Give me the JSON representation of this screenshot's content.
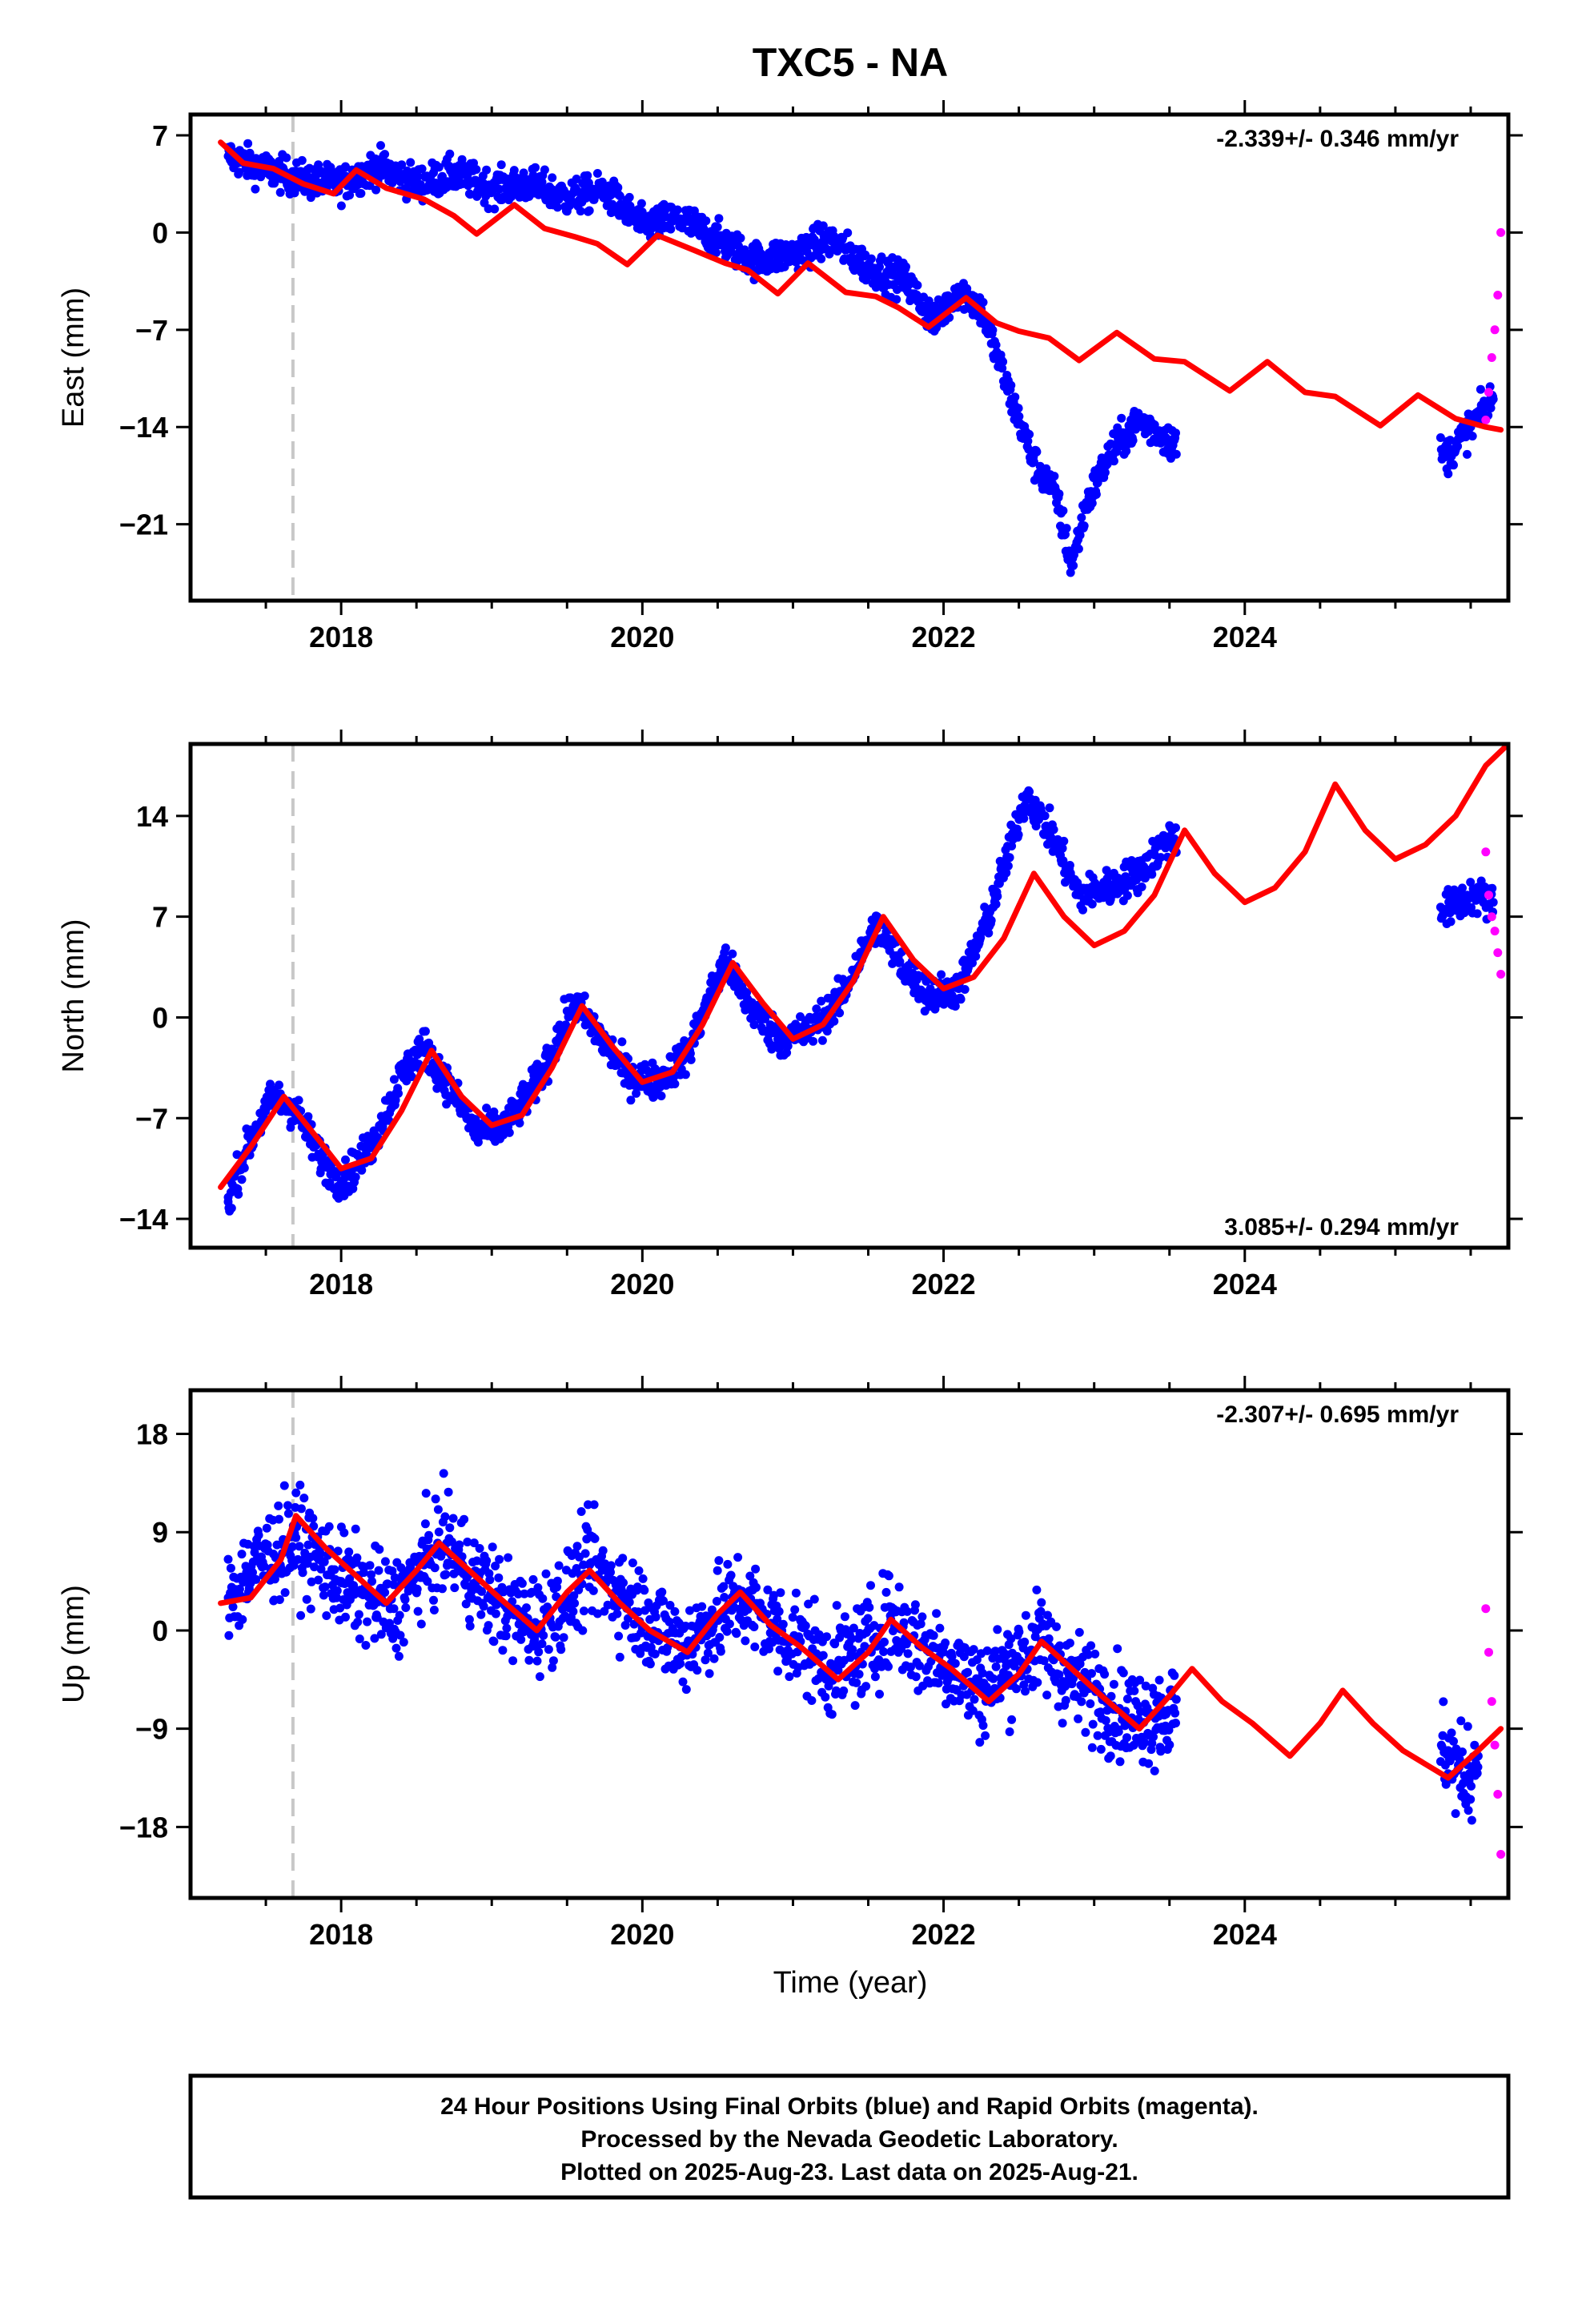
{
  "chart_data": {
    "type": "scatter",
    "title": "TXC5 - NA",
    "xlabel": "Time (year)",
    "xlim": [
      2017.0,
      2025.75
    ],
    "x_ticks": [
      "2018",
      "2020",
      "2022",
      "2024"
    ],
    "grid": false,
    "colors": {
      "final_orbits": "#0000ff",
      "rapid_orbits": "#ff00ff",
      "model_fit": "#ff0000",
      "event_line": "#c8c8c8"
    },
    "event_marker_x": 2017.68,
    "caption": [
      "24 Hour Positions Using Final Orbits (blue) and Rapid Orbits (magenta).",
      "Processed by the Nevada Geodetic Laboratory.",
      "Plotted on 2025-Aug-23. Last data on 2025-Aug-21."
    ],
    "panels": [
      {
        "ylabel": "East (mm)",
        "ylim": [
          -26.5,
          8.5
        ],
        "y_ticks": [
          "7",
          "0",
          "-7",
          "-14",
          "-21"
        ],
        "y_tick_values": [
          7,
          0,
          -7,
          -14,
          -21
        ],
        "rate": "-2.339+/- 0.346 mm/yr",
        "rate_position": "top-right",
        "series": [
          {
            "name": "Final Orbits",
            "x": [
              2017.25,
              2017.5,
              2017.75,
              2018.0,
              2018.25,
              2018.5,
              2018.75,
              2019.0,
              2019.25,
              2019.5,
              2019.75,
              2020.0,
              2020.25,
              2020.5,
              2020.75,
              2021.0,
              2021.25,
              2021.5,
              2021.75,
              2021.95,
              2022.1,
              2022.25,
              2022.45,
              2022.6,
              2022.75,
              2022.85,
              2022.95,
              2023.1,
              2023.3,
              2023.5,
              2025.35,
              2025.5,
              2025.65
            ],
            "y": [
              5.5,
              4.5,
              3.8,
              3.5,
              4.8,
              3.5,
              4.2,
              3.2,
              3.5,
              2.5,
              3.0,
              0.5,
              1.0,
              -0.5,
              -2.0,
              -1.5,
              -0.5,
              -2.5,
              -3.5,
              -6.5,
              -4.0,
              -5.5,
              -12.0,
              -16.5,
              -19.0,
              -24.0,
              -19.5,
              -16.0,
              -13.5,
              -15.0,
              -16.0,
              -14.0,
              -12.0
            ]
          },
          {
            "name": "Rapid Orbits",
            "x": [
              2025.6,
              2025.62,
              2025.64,
              2025.66,
              2025.68,
              2025.7
            ],
            "y": [
              -13.5,
              -11.5,
              -9.0,
              -7.0,
              -4.5,
              0.0
            ]
          },
          {
            "name": "Model",
            "x": [
              2017.2,
              2017.35,
              2017.55,
              2017.75,
              2017.95,
              2018.1,
              2018.3,
              2018.55,
              2018.75,
              2018.9,
              2019.15,
              2019.35,
              2019.55,
              2019.7,
              2019.9,
              2020.1,
              2020.35,
              2020.55,
              2020.7,
              2020.9,
              2021.1,
              2021.35,
              2021.55,
              2021.7,
              2021.9,
              2022.15,
              2022.35,
              2022.5,
              2022.7,
              2022.9,
              2023.15,
              2023.4,
              2023.6,
              2023.9,
              2024.15,
              2024.4,
              2024.6,
              2024.9,
              2025.15,
              2025.4,
              2025.6,
              2025.7
            ],
            "y": [
              6.5,
              5.0,
              4.6,
              3.5,
              2.8,
              4.5,
              3.2,
              2.4,
              1.2,
              -0.1,
              2.0,
              0.3,
              -0.3,
              -0.8,
              -2.3,
              -0.2,
              -1.3,
              -2.2,
              -2.7,
              -4.4,
              -2.2,
              -4.3,
              -4.6,
              -5.4,
              -6.8,
              -4.7,
              -6.5,
              -7.1,
              -7.6,
              -9.2,
              -7.2,
              -9.1,
              -9.3,
              -11.4,
              -9.3,
              -11.5,
              -11.8,
              -13.9,
              -11.7,
              -13.4,
              -14.0,
              -14.2
            ]
          }
        ]
      },
      {
        "ylabel": "North (mm)",
        "ylim": [
          -16.0,
          19.0
        ],
        "y_ticks": [
          "14",
          "7",
          "0",
          "-7",
          "-14"
        ],
        "y_tick_values": [
          14,
          7,
          0,
          -7,
          -14
        ],
        "rate": "3.085+/- 0.294 mm/yr",
        "rate_position": "bottom-right",
        "series": [
          {
            "name": "Final Orbits",
            "x": [
              2017.25,
              2017.4,
              2017.55,
              2017.7,
              2017.85,
              2018.0,
              2018.2,
              2018.4,
              2018.55,
              2018.7,
              2018.9,
              2019.1,
              2019.3,
              2019.55,
              2019.7,
              2019.9,
              2020.1,
              2020.3,
              2020.55,
              2020.7,
              2020.9,
              2021.1,
              2021.3,
              2021.55,
              2021.7,
              2021.9,
              2022.1,
              2022.3,
              2022.55,
              2022.7,
              2022.9,
              2023.1,
              2023.3,
              2023.5,
              2025.35,
              2025.5,
              2025.65
            ],
            "y": [
              -12.5,
              -8.5,
              -5.5,
              -6.5,
              -9.5,
              -11.5,
              -9.0,
              -4.0,
              -2.0,
              -4.5,
              -8.0,
              -7.5,
              -4.5,
              1.0,
              -1.0,
              -4.0,
              -4.5,
              -2.5,
              4.0,
              1.0,
              -1.5,
              -1.0,
              1.0,
              6.5,
              4.0,
              1.5,
              2.0,
              7.0,
              15.5,
              13.0,
              8.5,
              9.0,
              10.0,
              12.5,
              7.5,
              8.5,
              8.0
            ]
          },
          {
            "name": "Rapid Orbits",
            "x": [
              2025.6,
              2025.62,
              2025.64,
              2025.66,
              2025.68,
              2025.7
            ],
            "y": [
              11.5,
              8.5,
              7.0,
              6.0,
              4.5,
              3.0
            ]
          },
          {
            "name": "Model",
            "x": [
              2017.2,
              2017.4,
              2017.62,
              2017.85,
              2018.0,
              2018.2,
              2018.4,
              2018.6,
              2018.8,
              2019.0,
              2019.2,
              2019.4,
              2019.6,
              2019.8,
              2020.0,
              2020.2,
              2020.4,
              2020.6,
              2020.8,
              2021.0,
              2021.2,
              2021.4,
              2021.6,
              2021.8,
              2022.0,
              2022.2,
              2022.4,
              2022.6,
              2022.8,
              2023.0,
              2023.2,
              2023.4,
              2023.6,
              2023.8,
              2024.0,
              2024.2,
              2024.4,
              2024.6,
              2024.8,
              2025.0,
              2025.2,
              2025.4,
              2025.6,
              2025.75
            ],
            "y": [
              -11.8,
              -9.0,
              -5.5,
              -8.5,
              -10.5,
              -9.8,
              -6.5,
              -2.3,
              -5.5,
              -7.5,
              -6.8,
              -3.5,
              0.8,
              -2.0,
              -4.5,
              -3.8,
              -0.5,
              3.8,
              1.0,
              -1.5,
              -0.5,
              2.5,
              7.0,
              4.0,
              2.0,
              2.8,
              5.5,
              10.0,
              7.0,
              5.0,
              6.0,
              8.5,
              13.0,
              10.0,
              8.0,
              9.0,
              11.5,
              16.2,
              13.0,
              11.0,
              12.0,
              14.0,
              17.5,
              19.0
            ]
          }
        ]
      },
      {
        "ylabel": "Up (mm)",
        "ylim": [
          -24.5,
          22.0
        ],
        "y_ticks": [
          "18",
          "9",
          "0",
          "-9",
          "-18"
        ],
        "y_tick_values": [
          18,
          9,
          0,
          -9,
          -18
        ],
        "rate": "-2.307+/- 0.695 mm/yr",
        "rate_position": "top-right",
        "series": [
          {
            "name": "Final Orbits",
            "x": [
              2017.25,
              2017.4,
              2017.55,
              2017.7,
              2017.85,
              2018.0,
              2018.2,
              2018.35,
              2018.55,
              2018.7,
              2018.9,
              2019.1,
              2019.3,
              2019.5,
              2019.65,
              2019.85,
              2020.05,
              2020.25,
              2020.45,
              2020.65,
              2020.85,
              2021.05,
              2021.25,
              2021.45,
              2021.65,
              2021.85,
              2022.05,
              2022.25,
              2022.45,
              2022.65,
              2022.85,
              2023.05,
              2023.25,
              2023.45,
              2025.35,
              2025.45,
              2025.55
            ],
            "y": [
              3.0,
              5.5,
              7.0,
              8.5,
              6.5,
              4.5,
              3.0,
              2.0,
              6.0,
              8.0,
              4.5,
              2.0,
              0.5,
              3.0,
              6.0,
              3.5,
              1.0,
              -1.5,
              0.5,
              3.0,
              0.5,
              -1.0,
              -3.5,
              -2.0,
              1.0,
              -1.5,
              -3.0,
              -5.5,
              -3.0,
              -1.0,
              -4.5,
              -6.0,
              -8.0,
              -7.5,
              -11.0,
              -14.0,
              -11.5
            ]
          },
          {
            "name": "Rapid Orbits",
            "x": [
              2025.6,
              2025.62,
              2025.64,
              2025.66,
              2025.68,
              2025.7
            ],
            "y": [
              2.0,
              -2.0,
              -6.5,
              -10.5,
              -15.0,
              -20.5
            ]
          },
          {
            "name": "Model",
            "x": [
              2017.2,
              2017.4,
              2017.6,
              2017.7,
              2017.9,
              2018.1,
              2018.3,
              2018.5,
              2018.65,
              2018.85,
              2019.05,
              2019.3,
              2019.5,
              2019.65,
              2019.85,
              2020.05,
              2020.3,
              2020.5,
              2020.65,
              2020.85,
              2021.05,
              2021.3,
              2021.5,
              2021.65,
              2021.85,
              2022.05,
              2022.3,
              2022.5,
              2022.65,
              2022.85,
              2023.05,
              2023.3,
              2023.5,
              2023.65,
              2023.85,
              2024.05,
              2024.3,
              2024.5,
              2024.65,
              2024.85,
              2025.05,
              2025.35,
              2025.55,
              2025.7
            ],
            "y": [
              2.5,
              3.0,
              6.5,
              10.5,
              7.5,
              5.0,
              2.5,
              5.5,
              8.0,
              5.5,
              3.0,
              0.0,
              3.5,
              5.5,
              2.5,
              0.0,
              -2.0,
              1.5,
              3.5,
              0.5,
              -1.5,
              -4.5,
              -2.0,
              1.0,
              -1.5,
              -3.5,
              -6.5,
              -4.0,
              -1.0,
              -3.5,
              -6.0,
              -9.0,
              -6.0,
              -3.5,
              -6.5,
              -8.5,
              -11.5,
              -8.5,
              -5.5,
              -8.5,
              -11.0,
              -13.5,
              -11.0,
              -9.0
            ]
          }
        ]
      }
    ]
  }
}
